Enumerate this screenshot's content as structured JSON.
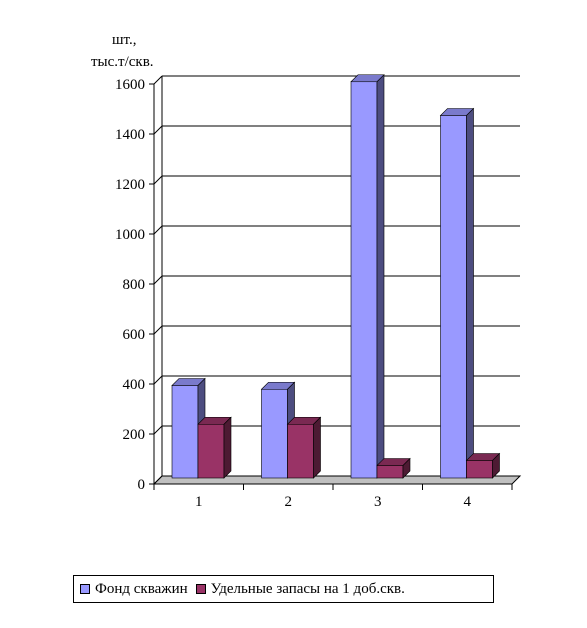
{
  "chart_data": {
    "type": "bar",
    "ylabel_line1": "шт.,",
    "ylabel_line2": "тыс.т/скв.",
    "categories": [
      "1",
      "2",
      "3",
      "4"
    ],
    "yticks": [
      "0",
      "200",
      "400",
      "600",
      "800",
      "1000",
      "1200",
      "1400",
      "1600"
    ],
    "ylim": [
      0,
      1600
    ],
    "grid": true,
    "legend_position": "bottom",
    "series": [
      {
        "name": "Фонд скважин",
        "values": [
          370,
          355,
          1585,
          1450
        ],
        "color": "#9999ff"
      },
      {
        "name": "Удельные запасы на 1 доб.скв.",
        "values": [
          215,
          215,
          50,
          70
        ],
        "color": "#993366"
      }
    ]
  }
}
